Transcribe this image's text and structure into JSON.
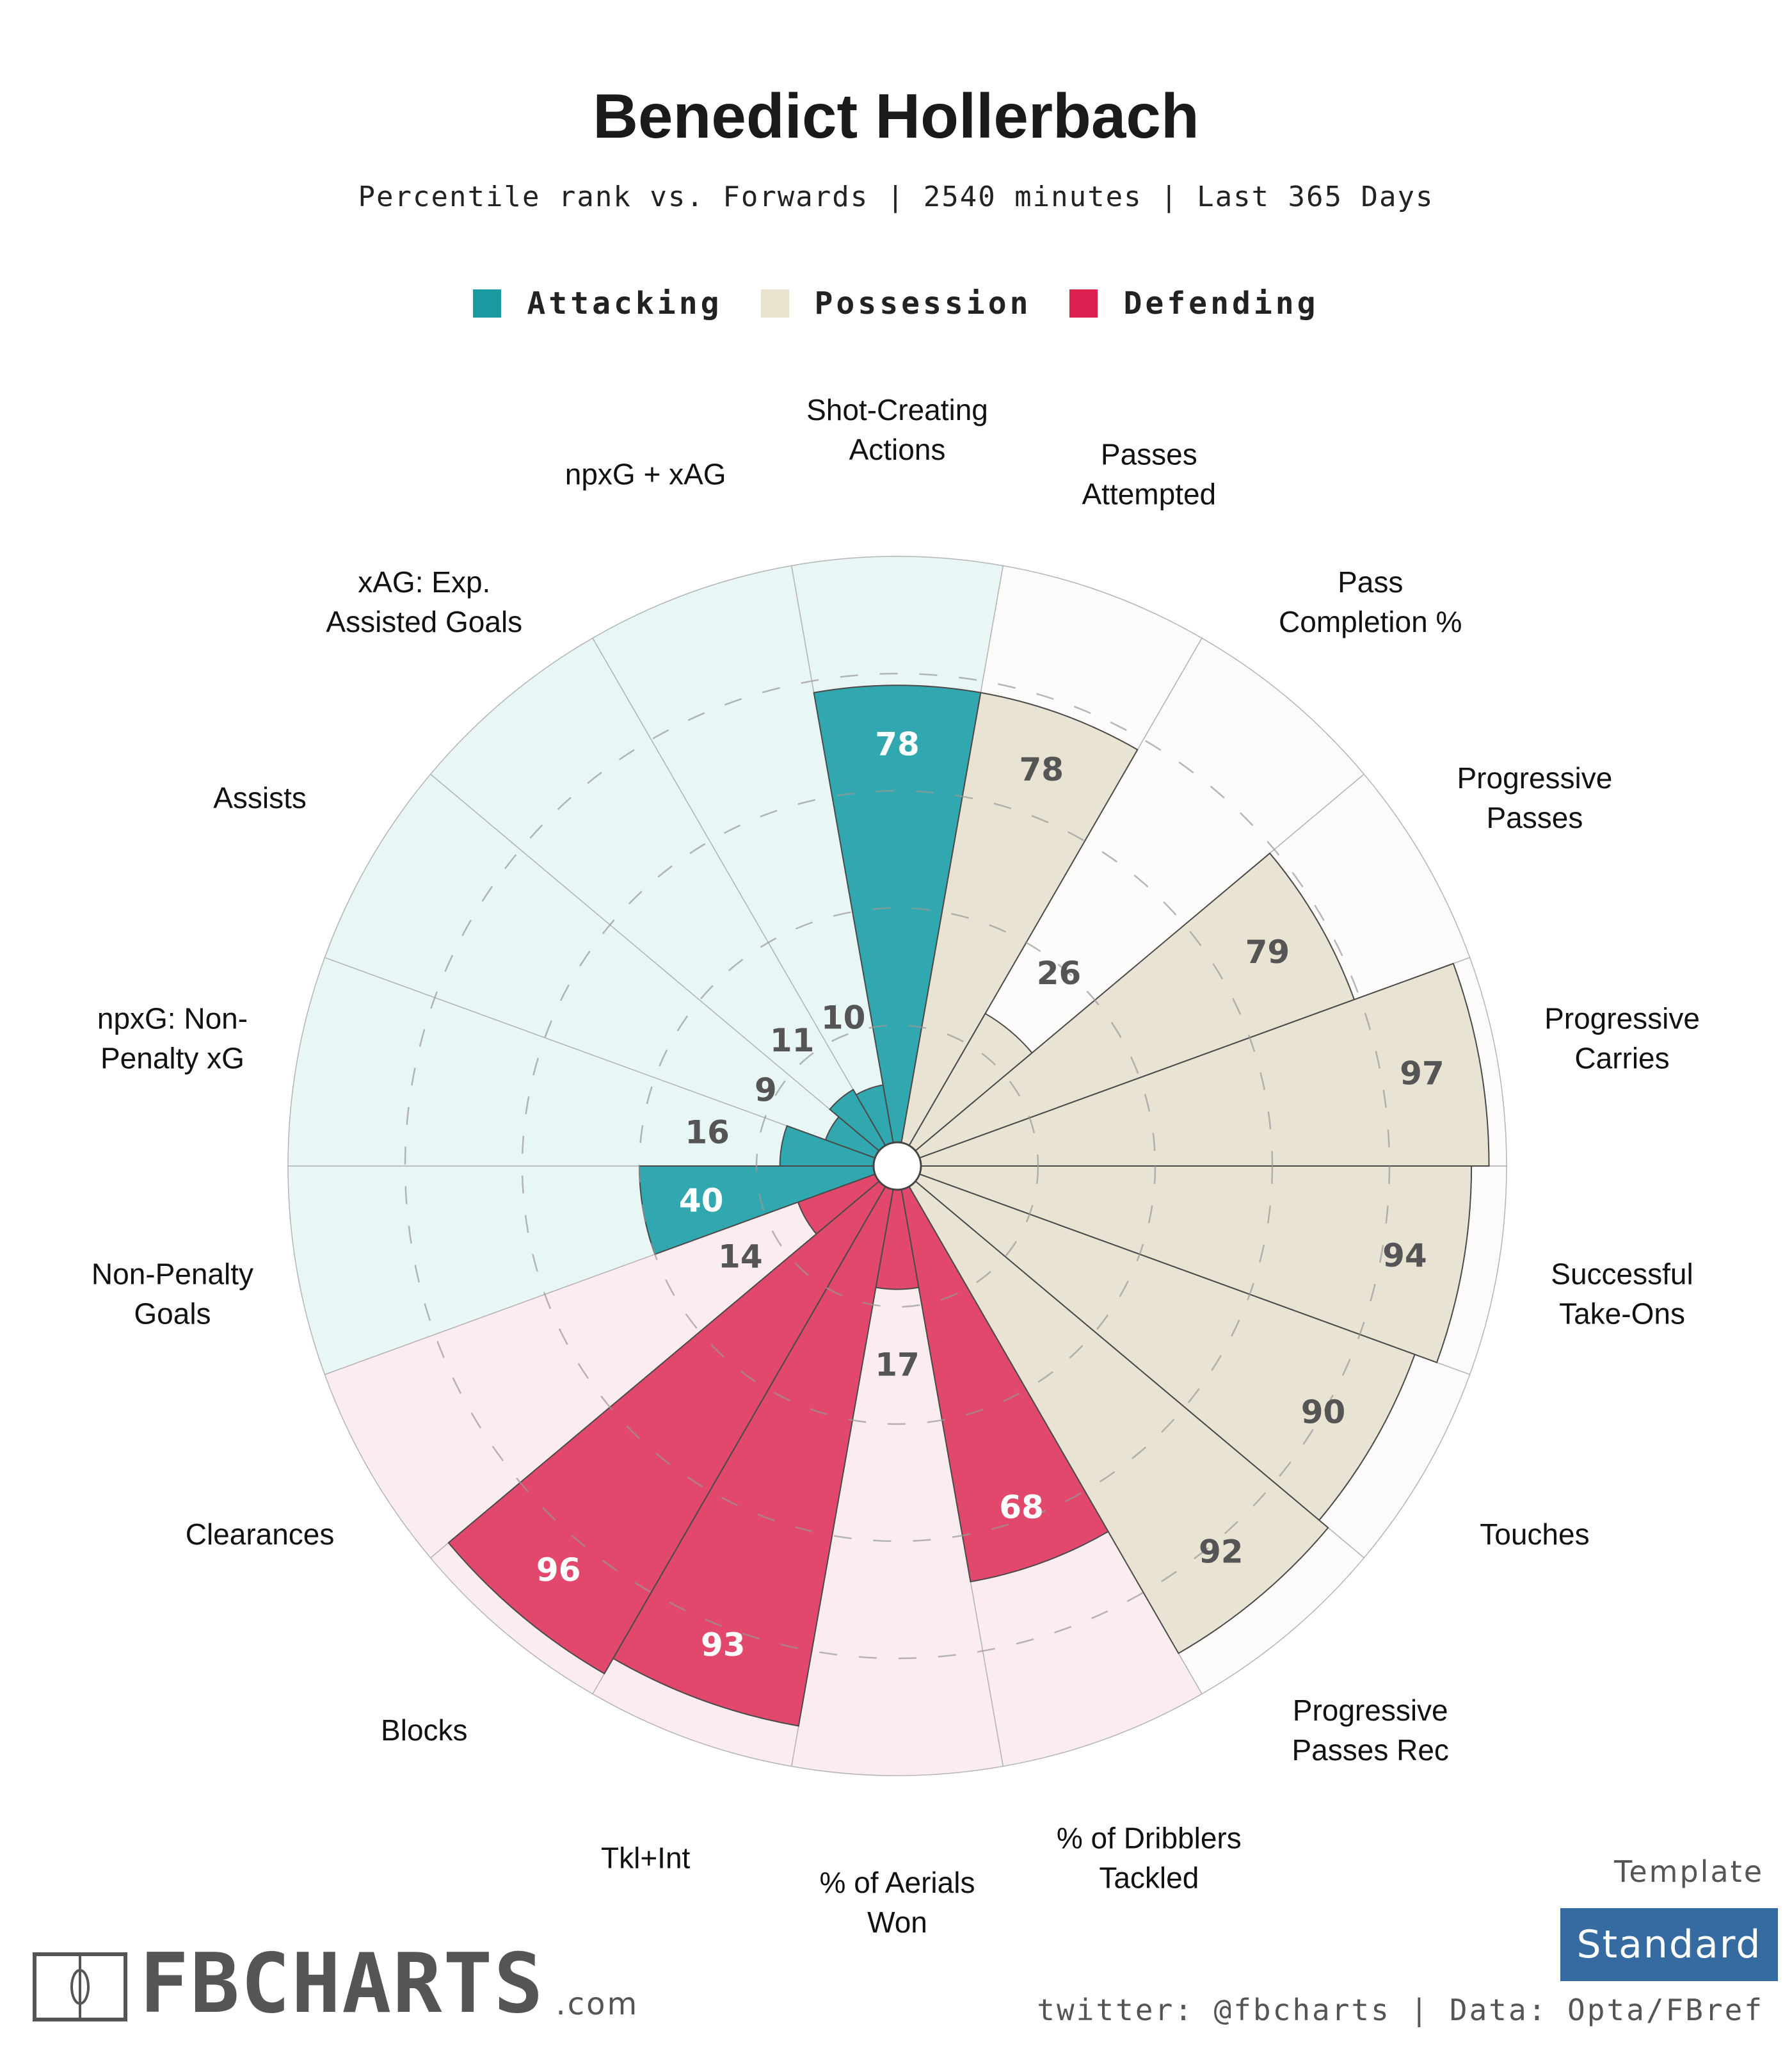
{
  "header": {
    "title": "Benedict Hollerbach",
    "subtitle": "Percentile rank vs. Forwards | 2540 minutes | Last 365 Days"
  },
  "legend": [
    {
      "label": "Attacking",
      "color": "#1a9aa0"
    },
    {
      "label": "Possession",
      "color": "#e8e2cf"
    },
    {
      "label": "Defending",
      "color": "#dc2050"
    }
  ],
  "chart_data": {
    "type": "polar-bar",
    "title": "Benedict Hollerbach",
    "range": [
      0,
      100
    ],
    "gridlines": [
      20,
      40,
      60,
      80
    ],
    "categories_colors": {
      "Attacking": {
        "bar": "#31a8af",
        "bg": "#e9f6f6",
        "label_inside": "#ffffff"
      },
      "Possession": {
        "bar": "#e8e3d3",
        "bg": "#fcfbf9",
        "label_inside": "#555555"
      },
      "Defending": {
        "bar": "#e2486c",
        "bg": "#fbecf0",
        "label_inside": "#ffffff"
      }
    },
    "stats": [
      {
        "label": [
          "Shot-Creating",
          "Actions"
        ],
        "value": 78,
        "group": "Attacking"
      },
      {
        "label": [
          "Passes",
          "Attempted"
        ],
        "value": 78,
        "group": "Possession"
      },
      {
        "label": [
          "Pass",
          "Completion %"
        ],
        "value": 26,
        "group": "Possession"
      },
      {
        "label": [
          "Progressive",
          "Passes"
        ],
        "value": 79,
        "group": "Possession"
      },
      {
        "label": [
          "Progressive",
          "Carries"
        ],
        "value": 97,
        "group": "Possession"
      },
      {
        "label": [
          "Successful",
          "Take-Ons"
        ],
        "value": 94,
        "group": "Possession"
      },
      {
        "label": [
          "Touches"
        ],
        "value": 90,
        "group": "Possession"
      },
      {
        "label": [
          "Progressive",
          "Passes Rec"
        ],
        "value": 92,
        "group": "Possession"
      },
      {
        "label": [
          "% of Dribblers",
          "Tackled"
        ],
        "value": 68,
        "group": "Defending"
      },
      {
        "label": [
          "% of Aerials",
          "Won"
        ],
        "value": 17,
        "group": "Defending"
      },
      {
        "label": [
          "Tkl+Int"
        ],
        "value": 93,
        "group": "Defending"
      },
      {
        "label": [
          "Blocks"
        ],
        "value": 96,
        "group": "Defending"
      },
      {
        "label": [
          "Clearances"
        ],
        "value": 14,
        "group": "Defending"
      },
      {
        "label": [
          "Non-Penalty",
          "Goals"
        ],
        "value": 40,
        "group": "Attacking"
      },
      {
        "label": [
          "npxG: Non-",
          "Penalty xG"
        ],
        "value": 16,
        "group": "Attacking"
      },
      {
        "label": [
          "Assists"
        ],
        "value": 9,
        "group": "Attacking"
      },
      {
        "label": [
          "xAG: Exp.",
          "Assisted Goals"
        ],
        "value": 11,
        "group": "Attacking"
      },
      {
        "label": [
          "npxG + xAG"
        ],
        "value": 10,
        "group": "Attacking"
      }
    ]
  },
  "footer": {
    "template_label": "Template",
    "template_value": "Standard",
    "credit": "twitter: @fbcharts | Data: Opta/FBref",
    "logo_text": "FBCHARTS",
    "logo_suffix": ".com"
  }
}
